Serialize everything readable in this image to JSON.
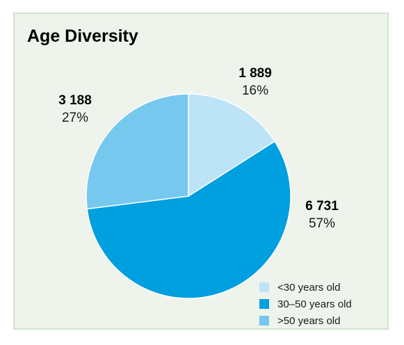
{
  "title": "Age Diversity",
  "chart_data": {
    "type": "pie",
    "title": "Age Diversity",
    "slices": [
      {
        "label": "<30 years old",
        "value": 1889,
        "count_label": "1 889",
        "percent": 16,
        "percent_label": "16%",
        "color": "#bde3f7"
      },
      {
        "label": "30–50 years old",
        "value": 6731,
        "count_label": "6 731",
        "percent": 57,
        "percent_label": "57%",
        "color": "#009fe0"
      },
      {
        "label": ">50 years old",
        "value": 3188,
        "count_label": "3 188",
        "percent": 27,
        "percent_label": "27%",
        "color": "#76c8ef"
      }
    ],
    "legend": {
      "position": "bottom-right",
      "items": [
        "<30 years old",
        "30–50 years old",
        ">50 years old"
      ]
    }
  },
  "colors": {
    "background": "#eef4ec",
    "border": "#d3e3cf",
    "slice_divider": "#ffffff"
  }
}
